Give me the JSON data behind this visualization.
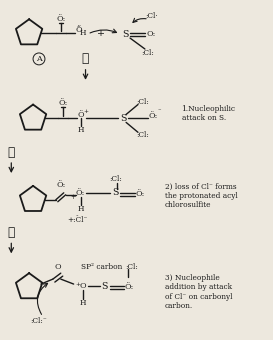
{
  "bg_color": "#ede8de",
  "text_color": "#1a1a1a",
  "figsize": [
    2.73,
    3.4
  ],
  "dpi": 100,
  "annotations": {
    "step1_note": "1.Nucleophilic\nattack on S.",
    "step2_note": "2) loss of Cl⁻ forms\nthe protonated acyl\nchlorosulfite",
    "step3_note": "3) Nucleophile\naddition by attack\nof Cl⁻ on carbonyl\ncarbon."
  }
}
